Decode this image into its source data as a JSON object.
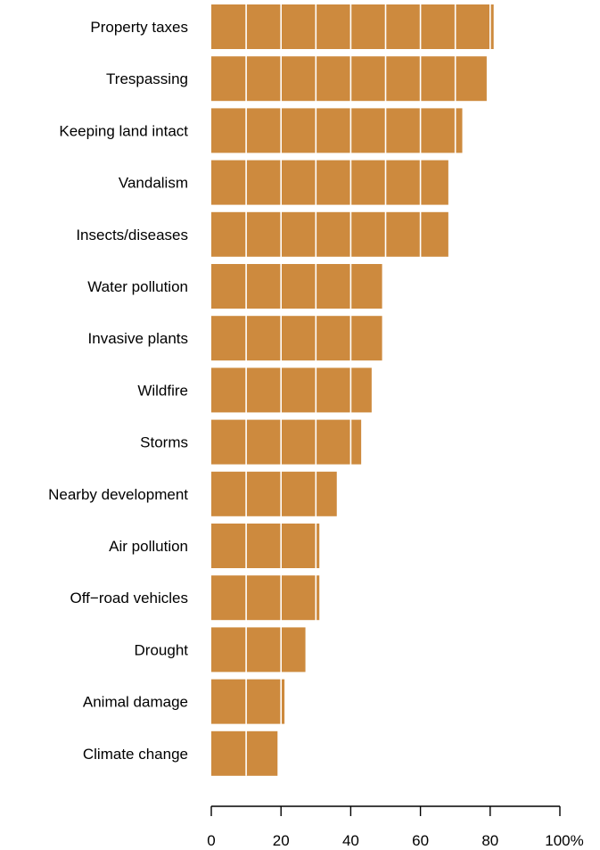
{
  "chart_data": {
    "type": "bar",
    "orientation": "horizontal",
    "categories": [
      "Property taxes",
      "Trespassing",
      "Keeping land intact",
      "Vandalism",
      "Insects/diseases",
      "Water pollution",
      "Invasive plants",
      "Wildfire",
      "Storms",
      "Nearby development",
      "Air pollution",
      "Off−road vehicles",
      "Drought",
      "Animal damage",
      "Climate change"
    ],
    "values": [
      81,
      79,
      72,
      68,
      68,
      49,
      49,
      46,
      43,
      36,
      31,
      31,
      27,
      21,
      19
    ],
    "title": "",
    "xlabel": "",
    "ylabel": "",
    "xlim": [
      0,
      100
    ],
    "xticks": [
      0,
      20,
      40,
      60,
      80,
      100
    ],
    "xtick_labels": [
      "0",
      "20",
      "40",
      "60",
      "80",
      "100%"
    ],
    "grid": true,
    "gridline_color": "#ffffff",
    "bar_color": "#cd8a3e"
  }
}
